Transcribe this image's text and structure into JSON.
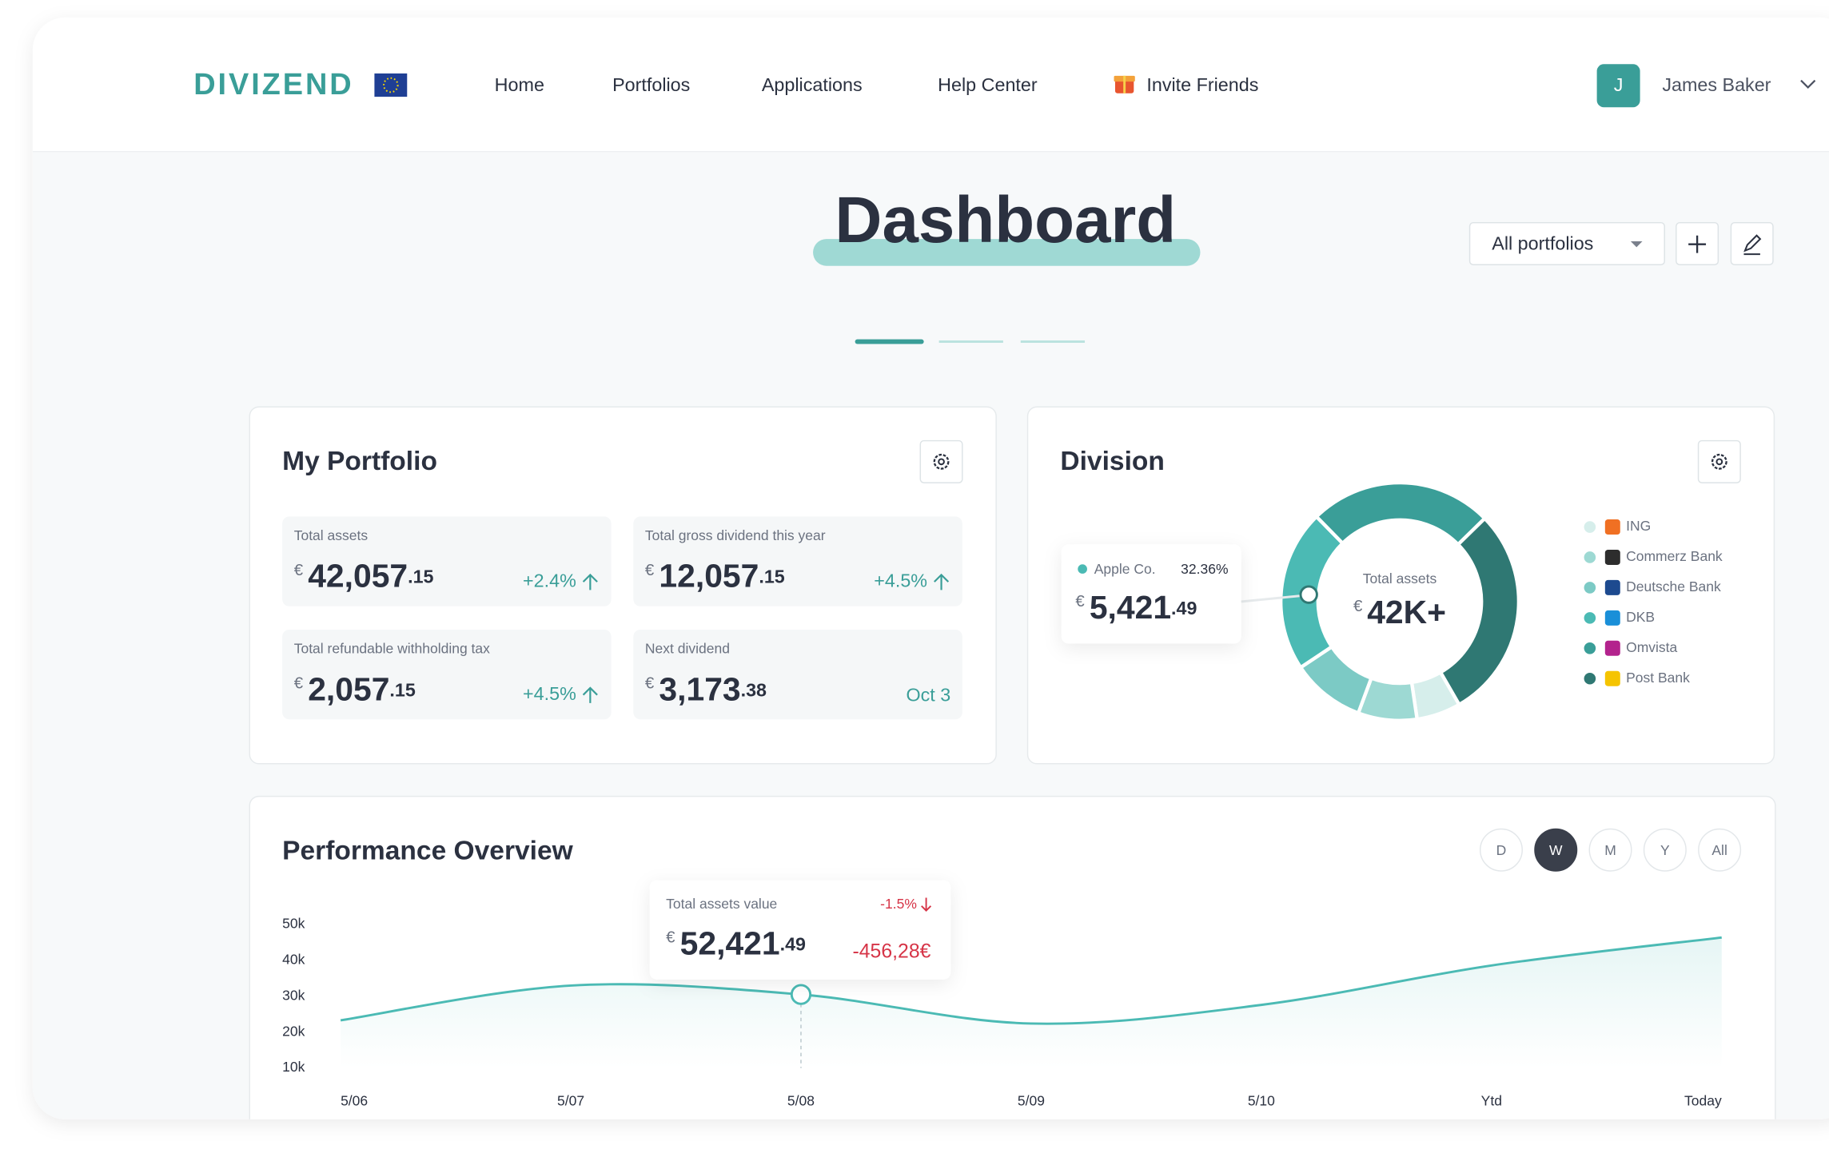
{
  "nav": {
    "logo": "DIVIZEND",
    "links": [
      "Home",
      "Portfolios",
      "Applications",
      "Help Center",
      "Invite Friends"
    ],
    "user_initial": "J",
    "user_name": "James Baker"
  },
  "page_title": "Dashboard",
  "portfolio_select": "All portfolios",
  "portfolio": {
    "title": "My Portfolio",
    "tiles": [
      {
        "label": "Total assets",
        "currency": "€",
        "whole": "42,057",
        "cents": ".15",
        "change": "+2.4%"
      },
      {
        "label": "Total gross dividend this year",
        "currency": "€",
        "whole": "12,057",
        "cents": ".15",
        "change": "+4.5%"
      },
      {
        "label": "Total refundable withholding tax",
        "currency": "€",
        "whole": "2,057",
        "cents": ".15",
        "change": "+4.5%"
      },
      {
        "label": "Next dividend",
        "currency": "€",
        "whole": "3,173",
        "cents": ".38",
        "date": "Oct 3"
      }
    ]
  },
  "chart_data": [
    {
      "type": "pie",
      "title": "Division",
      "categories": [
        "ING",
        "Commerz Bank",
        "Deutsche Bank",
        "DKB",
        "Omvista",
        "Post Bank"
      ],
      "values": [
        6,
        8,
        10,
        22,
        25,
        29
      ],
      "colors": [
        "#d6eeeb",
        "#9dd9d3",
        "#7ccac5",
        "#4bbab4",
        "#3a9e98",
        "#2f7873"
      ],
      "center_label": "Total assets",
      "center_currency": "€",
      "center_value": "42K+",
      "tooltip": {
        "name": "Apple Co.",
        "percent": "32.36%",
        "currency": "€",
        "whole": "5,421",
        "cents": ".49"
      }
    },
    {
      "type": "line",
      "title": "Performance Overview",
      "categories": [
        "5/06",
        "5/07",
        "5/08",
        "5/09",
        "5/10",
        "Ytd",
        "Today"
      ],
      "values": [
        23300,
        33000,
        30500,
        22400,
        27600,
        38600,
        46400
      ],
      "color": "#4bbab4",
      "ylim": [
        10000,
        50000
      ],
      "yticks": [
        {
          "value": 10000,
          "label": "10k"
        },
        {
          "value": 20000,
          "label": "20k"
        },
        {
          "value": 30000,
          "label": "30k"
        },
        {
          "value": 40000,
          "label": "40k"
        },
        {
          "value": 50000,
          "label": "50k"
        }
      ],
      "ranges": [
        "D",
        "W",
        "M",
        "Y",
        "All"
      ],
      "active_range": 1,
      "highlight_index": 2,
      "tooltip": {
        "label": "Total assets value",
        "change": "-1.5%",
        "currency": "€",
        "whole": "52,421",
        "cents": ".49",
        "delta": "-456,28€"
      }
    }
  ]
}
